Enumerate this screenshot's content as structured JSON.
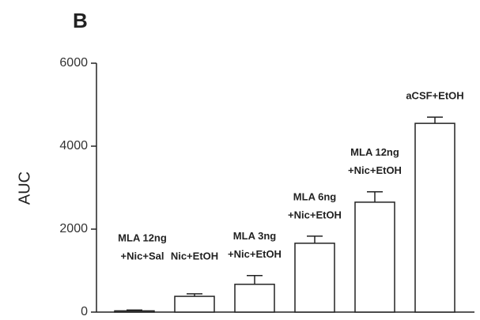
{
  "chart_data": {
    "type": "bar",
    "panel_label": "B",
    "ylabel": "AUC",
    "categories": [
      [
        "MLA 12ng",
        "+Nic+Sal"
      ],
      [
        "Nic+EtOH"
      ],
      [
        "MLA 3ng",
        "+Nic+EtOH"
      ],
      [
        "MLA 6ng",
        "+Nic+EtOH"
      ],
      [
        "MLA 12ng",
        "+Nic+EtOH"
      ],
      [
        "aCSF+EtOH"
      ]
    ],
    "values": [
      30,
      380,
      670,
      1660,
      2650,
      4550
    ],
    "errors": [
      20,
      60,
      210,
      170,
      250,
      150
    ],
    "color": "#ffffff",
    "ylim": [
      0,
      6000
    ],
    "yticks": [
      0,
      2000,
      4000,
      6000
    ]
  }
}
